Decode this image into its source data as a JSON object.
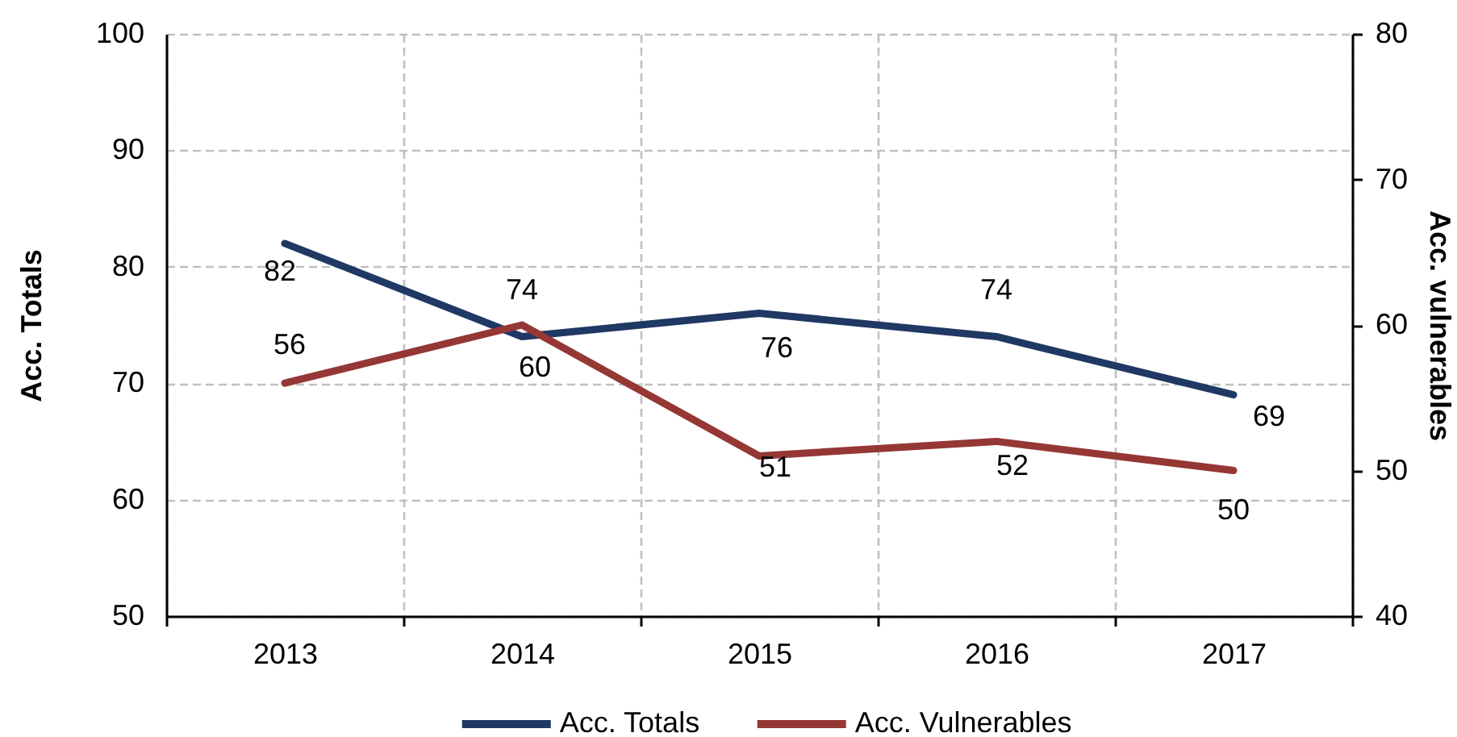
{
  "chart_data": {
    "type": "line",
    "categories": [
      "2013",
      "2014",
      "2015",
      "2016",
      "2017"
    ],
    "ylabel": "Acc. Totals",
    "y2label": "Acc. vulnerables",
    "ylim": [
      50,
      100
    ],
    "yticks": [
      50,
      60,
      70,
      80,
      90,
      100
    ],
    "y2lim": [
      40,
      80
    ],
    "y2ticks": [
      40,
      50,
      60,
      70,
      80
    ],
    "series": [
      {
        "name": "Acc. Totals",
        "color": "#1f3864",
        "values": [
          82,
          74,
          76,
          74,
          69
        ]
      },
      {
        "name": "Acc. Vulnerables",
        "color": "#953735",
        "values": [
          56,
          60,
          51,
          52,
          50
        ],
        "axis": "y2"
      }
    ],
    "data_labels": true,
    "grid": true,
    "legend": "bottom"
  }
}
